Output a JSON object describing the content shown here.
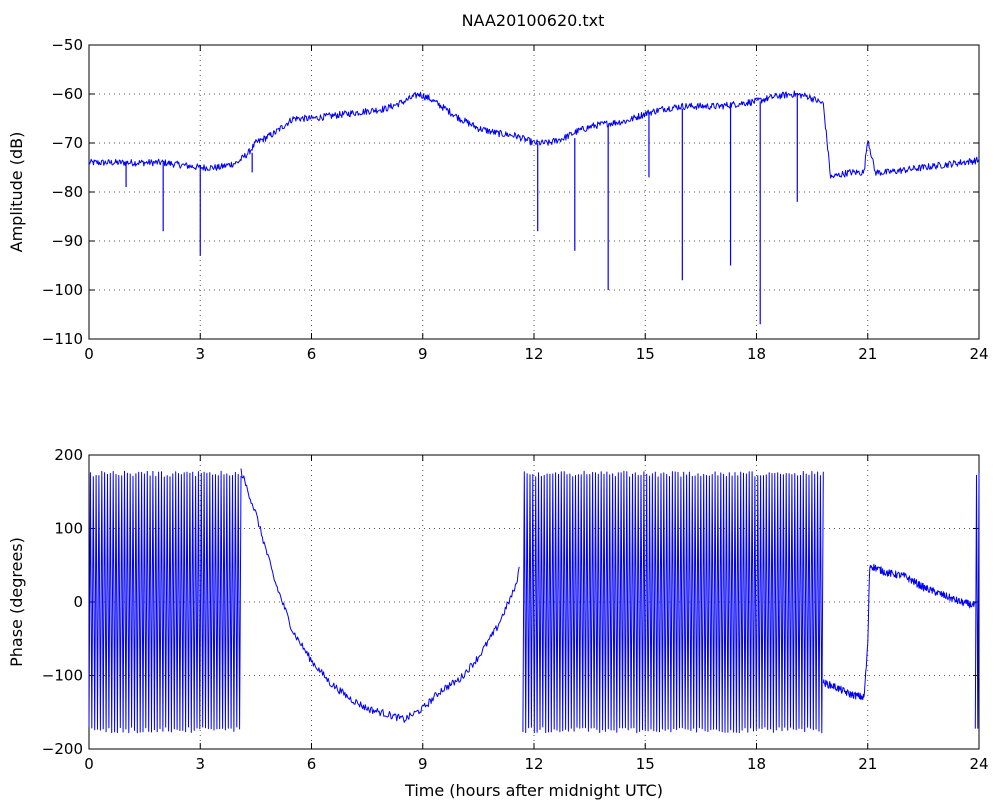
{
  "figure_title": "NAA20100620.txt",
  "colors": {
    "series": "#0000ff",
    "axes": "#000000",
    "grid": "#555555",
    "background": "#ffffff"
  },
  "chart_data": [
    {
      "type": "line",
      "title": "NAA20100620.txt",
      "xlabel": "",
      "ylabel": "Amplitude (dB)",
      "xlim": [
        0,
        24
      ],
      "ylim": [
        -110,
        -50
      ],
      "xticks": [
        "0",
        "3",
        "6",
        "9",
        "12",
        "15",
        "18",
        "21",
        "24"
      ],
      "yticks": [
        "−110",
        "−100",
        "−90",
        "−80",
        "−70",
        "−60",
        "−50"
      ],
      "grid": true,
      "series": [
        {
          "x": [
            0,
            0.5,
            1.0,
            1.5,
            2.0,
            2.5,
            3.0,
            3.5,
            4.0,
            4.3,
            4.5,
            5.0,
            5.5,
            6.0,
            6.5,
            7.0,
            7.5,
            8.0,
            8.5,
            8.9,
            9.2,
            9.6,
            10.0,
            10.5,
            11.0,
            11.5,
            12.0,
            12.4,
            12.8,
            13.2,
            13.6,
            14.0,
            14.5,
            15.0,
            15.5,
            16.0,
            16.5,
            17.0,
            17.5,
            18.0,
            18.5,
            19.0,
            19.4,
            19.8,
            20.0,
            20.5,
            20.9,
            21.0,
            21.2,
            21.5,
            22.0,
            22.5,
            23.0,
            23.5,
            24.0
          ],
          "values": [
            -74,
            -74,
            -74,
            -74,
            -74,
            -74.5,
            -75,
            -75,
            -74,
            -72,
            -70,
            -68,
            -65,
            -65,
            -64.5,
            -64,
            -63.5,
            -63,
            -61.5,
            -60,
            -61,
            -63,
            -65,
            -67,
            -68,
            -68.5,
            -70,
            -70,
            -69,
            -67.5,
            -66.5,
            -66,
            -65.5,
            -64,
            -63,
            -62.5,
            -62.5,
            -62.5,
            -62,
            -61.5,
            -60.5,
            -60,
            -60.5,
            -62,
            -77,
            -76,
            -76,
            -69,
            -76,
            -76,
            -75.5,
            -75,
            -74.5,
            -74,
            -73.5
          ]
        }
      ],
      "spikes": [
        {
          "x": 1.0,
          "min": -79
        },
        {
          "x": 2.0,
          "min": -88
        },
        {
          "x": 3.0,
          "min": -93
        },
        {
          "x": 4.4,
          "min": -76
        },
        {
          "x": 12.1,
          "min": -88
        },
        {
          "x": 13.1,
          "min": -92
        },
        {
          "x": 14.0,
          "min": -100
        },
        {
          "x": 15.1,
          "min": -77
        },
        {
          "x": 16.0,
          "min": -98
        },
        {
          "x": 17.3,
          "min": -95
        },
        {
          "x": 18.1,
          "min": -107
        },
        {
          "x": 19.1,
          "min": -82
        }
      ]
    },
    {
      "type": "line",
      "title": "",
      "xlabel": "Time (hours after midnight UTC)",
      "ylabel": "Phase (degrees)",
      "xlim": [
        0,
        24
      ],
      "ylim": [
        -200,
        200
      ],
      "xticks": [
        "0",
        "3",
        "6",
        "9",
        "12",
        "15",
        "18",
        "21",
        "24"
      ],
      "yticks": [
        "−200",
        "−100",
        "0",
        "100",
        "200"
      ],
      "grid": true,
      "series": [
        {
          "segments": [
            {
              "x_start": 0.0,
              "x_end": 4.1,
              "wrapping": true,
              "min": -178,
              "max": 178
            },
            {
              "x": [
                4.1,
                4.5,
                5.0,
                5.5,
                6.0,
                6.5,
                7.0,
                7.5,
                8.0,
                8.5,
                9.0,
                9.5,
                10.0,
                10.5,
                11.0,
                11.5,
                11.6
              ],
              "values": [
                178,
                120,
                30,
                -40,
                -80,
                -110,
                -130,
                -145,
                -152,
                -160,
                -145,
                -120,
                -105,
                -75,
                -35,
                20,
                45
              ]
            },
            {
              "x_start": 11.7,
              "x_end": 19.8,
              "wrapping": true,
              "min": -178,
              "max": 178
            },
            {
              "x": [
                19.8,
                20.1,
                20.5,
                20.9,
                21.0,
                21.05,
                21.5,
                22.0,
                22.5,
                23.0,
                23.5,
                23.9
              ],
              "values": [
                -110,
                -115,
                -125,
                -130,
                -60,
                50,
                40,
                35,
                20,
                10,
                0,
                -5
              ]
            },
            {
              "x_start": 23.9,
              "x_end": 24.0,
              "wrapping": true,
              "min": -178,
              "max": 178
            }
          ]
        }
      ]
    }
  ]
}
